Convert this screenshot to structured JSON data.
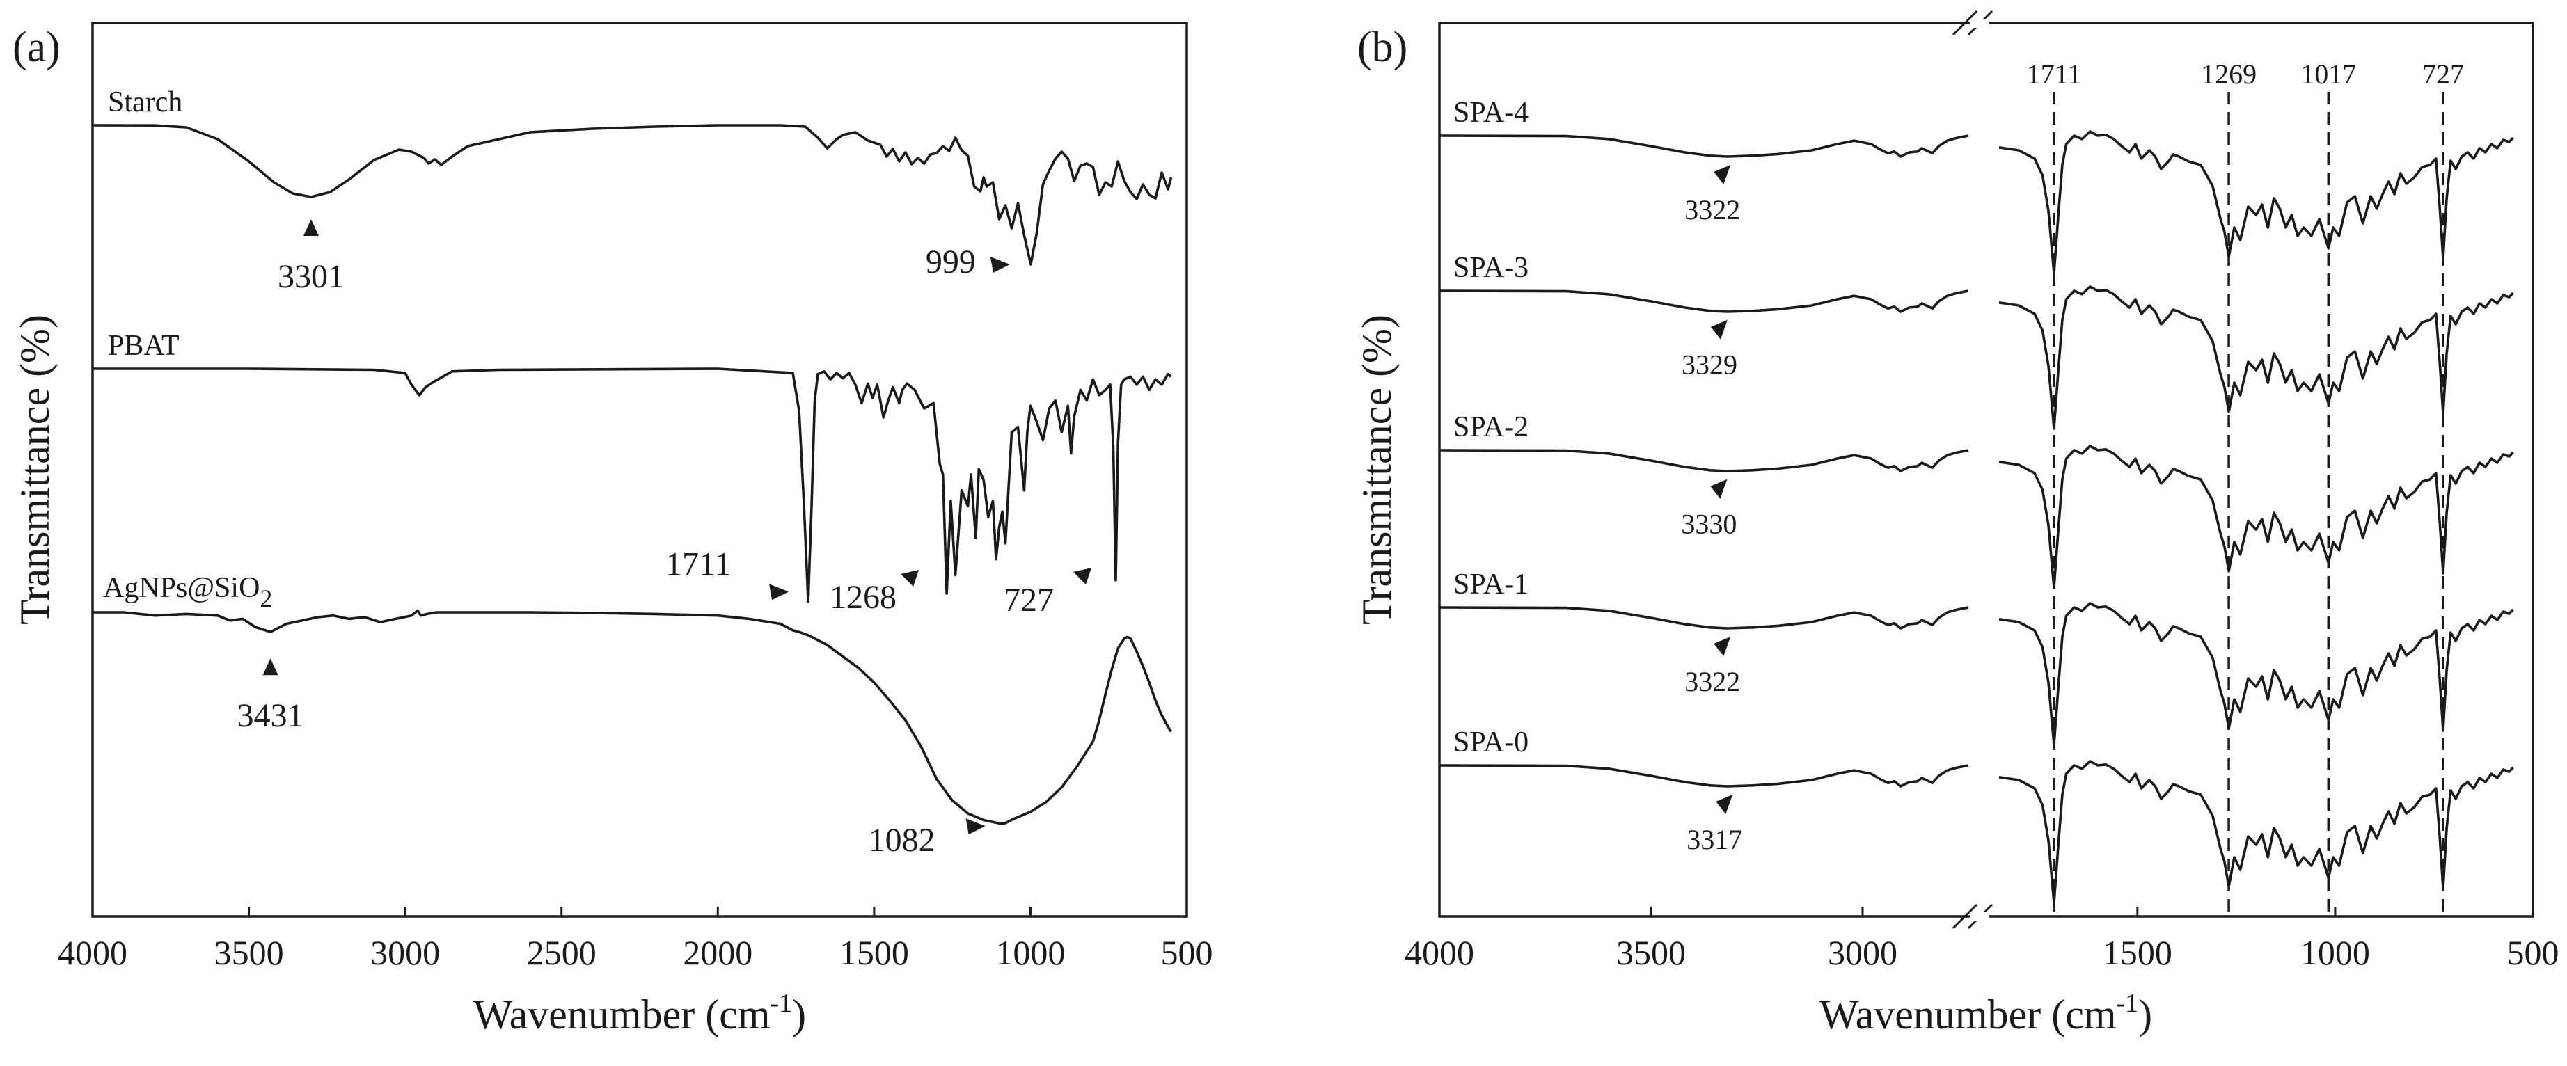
{
  "chart_data": [
    {
      "panel": "(a)",
      "type": "line",
      "xlabel": "Wavenumber (cm",
      "xlabel_sup": "-1",
      "xlabel_end": ")",
      "ylabel": "Transmittance (%)",
      "xlim": [
        4000,
        500
      ],
      "xticks": [
        "4000",
        "3500",
        "3000",
        "2500",
        "2000",
        "1500",
        "1000",
        "500"
      ],
      "series": [
        {
          "name": "Starch",
          "x": [
            4000,
            3800,
            3700,
            3600,
            3500,
            3420,
            3360,
            3301,
            3240,
            3180,
            3100,
            3020,
            2980,
            2940,
            2925,
            2905,
            2885,
            2850,
            2800,
            2600,
            2400,
            2200,
            2000,
            1800,
            1720,
            1680,
            1650,
            1620,
            1600,
            1560,
            1520,
            1480,
            1460,
            1440,
            1420,
            1400,
            1380,
            1360,
            1340,
            1320,
            1300,
            1280,
            1260,
            1240,
            1220,
            1200,
            1180,
            1160,
            1150,
            1140,
            1120,
            1100,
            1080,
            1060,
            1040,
            1020,
            999,
            980,
            960,
            940,
            920,
            900,
            880,
            860,
            840,
            820,
            800,
            780,
            760,
            740,
            720,
            700,
            680,
            660,
            640,
            620,
            600,
            580,
            560,
            550
          ],
          "y": [
            0,
            0.2,
            3,
            20,
            52,
            82,
            98,
            103,
            96,
            78,
            50,
            35,
            38,
            47,
            55,
            49,
            57,
            45,
            30,
            10,
            5,
            2,
            0,
            0,
            2,
            18,
            33,
            20,
            14,
            10,
            22,
            28,
            45,
            34,
            52,
            39,
            56,
            47,
            55,
            42,
            40,
            30,
            37,
            18,
            36,
            44,
            88,
            95,
            75,
            88,
            82,
            135,
            115,
            148,
            112,
            158,
            200,
            155,
            85,
            65,
            48,
            38,
            48,
            80,
            58,
            55,
            60,
            100,
            82,
            88,
            52,
            80,
            96,
            106,
            85,
            100,
            105,
            68,
            92,
            75
          ]
        },
        {
          "name": "PBAT",
          "x": [
            4000,
            3500,
            3100,
            3000,
            2980,
            2955,
            2935,
            2910,
            2880,
            2850,
            2700,
            2000,
            1760,
            1740,
            1725,
            1711,
            1700,
            1690,
            1680,
            1660,
            1640,
            1620,
            1600,
            1580,
            1560,
            1540,
            1520,
            1505,
            1490,
            1470,
            1455,
            1440,
            1420,
            1410,
            1395,
            1370,
            1340,
            1310,
            1290,
            1280,
            1268,
            1255,
            1240,
            1220,
            1200,
            1190,
            1175,
            1165,
            1150,
            1135,
            1120,
            1110,
            1100,
            1090,
            1080,
            1060,
            1040,
            1020,
            1010,
            1000,
            980,
            960,
            940,
            920,
            900,
            880,
            870,
            860,
            850,
            840,
            820,
            800,
            780,
            760,
            745,
            735,
            727,
            720,
            710,
            700,
            680,
            660,
            640,
            620,
            600,
            580,
            560,
            550
          ],
          "y": [
            0,
            0,
            2,
            8,
            30,
            50,
            35,
            25,
            15,
            5,
            2,
            0,
            8,
            80,
            250,
            440,
            260,
            60,
            10,
            5,
            20,
            8,
            18,
            8,
            30,
            65,
            28,
            55,
            30,
            92,
            60,
            35,
            65,
            40,
            28,
            40,
            75,
            65,
            180,
            200,
            425,
            250,
            390,
            230,
            260,
            200,
            320,
            190,
            210,
            280,
            250,
            360,
            300,
            270,
            330,
            120,
            110,
            230,
            120,
            70,
            100,
            135,
            75,
            60,
            120,
            70,
            160,
            90,
            65,
            40,
            60,
            20,
            50,
            40,
            30,
            150,
            400,
            140,
            30,
            20,
            15,
            30,
            15,
            40,
            20,
            30,
            10,
            15
          ]
        },
        {
          "name": "AgNPs@SiO",
          "name_sub": "2",
          "x": [
            4000,
            3900,
            3800,
            3700,
            3600,
            3560,
            3520,
            3480,
            3431,
            3380,
            3330,
            3280,
            3230,
            3180,
            3130,
            3080,
            3030,
            2980,
            2960,
            2950,
            2930,
            2900,
            2800,
            2600,
            2400,
            2200,
            2000,
            1900,
            1800,
            1760,
            1740,
            1711,
            1690,
            1650,
            1600,
            1550,
            1500,
            1450,
            1400,
            1350,
            1300,
            1250,
            1200,
            1150,
            1100,
            1082,
            1050,
            1000,
            950,
            900,
            850,
            800,
            780,
            760,
            740,
            720,
            700,
            690,
            680,
            660,
            640,
            620,
            600,
            580,
            560,
            550
          ],
          "y": [
            0,
            0,
            10,
            5,
            10,
            25,
            20,
            45,
            60,
            35,
            25,
            15,
            10,
            20,
            15,
            30,
            20,
            10,
            -5,
            10,
            5,
            0,
            0,
            0,
            2,
            5,
            10,
            20,
            35,
            55,
            60,
            70,
            80,
            100,
            135,
            170,
            215,
            270,
            330,
            410,
            510,
            575,
            615,
            635,
            645,
            645,
            630,
            610,
            580,
            535,
            470,
            395,
            330,
            250,
            175,
            110,
            80,
            75,
            80,
            120,
            165,
            215,
            270,
            315,
            350,
            365
          ]
        }
      ],
      "annotations": [
        {
          "text": "3301",
          "x": 3301,
          "series": "Starch"
        },
        {
          "text": "999",
          "x": 999,
          "series": "Starch"
        },
        {
          "text": "1711",
          "x": 1711,
          "series": "PBAT"
        },
        {
          "text": "1268",
          "x": 1268,
          "series": "PBAT"
        },
        {
          "text": "727",
          "x": 727,
          "series": "PBAT"
        },
        {
          "text": "3431",
          "x": 3431,
          "series": "AgNPs@SiO2"
        },
        {
          "text": "1082",
          "x": 1082,
          "series": "AgNPs@SiO2"
        }
      ]
    },
    {
      "panel": "(b)",
      "type": "line",
      "xlabel": "Wavenumber (cm",
      "xlabel_sup": "-1",
      "xlabel_end": ")",
      "ylabel": "Transmittance (%)",
      "xlim": [
        4000,
        500
      ],
      "axis_break": [
        2750,
        1850
      ],
      "xticks": [
        "4000",
        "3500",
        "3000",
        "1500",
        "1000",
        "500"
      ],
      "reference_lines": [
        "1711",
        "1269",
        "1017",
        "727"
      ],
      "series": [
        {
          "name": "SPA-4",
          "oh_peak": "3322"
        },
        {
          "name": "SPA-3",
          "oh_peak": "3329"
        },
        {
          "name": "SPA-2",
          "oh_peak": "3330"
        },
        {
          "name": "SPA-1",
          "oh_peak": "3322"
        },
        {
          "name": "SPA-0",
          "oh_peak": "3317"
        }
      ],
      "spectrum_shape": {
        "x": [
          4000,
          3700,
          3600,
          3500,
          3420,
          3360,
          3320,
          3260,
          3200,
          3120,
          3060,
          3020,
          2980,
          2960,
          2940,
          2925,
          2910,
          2890,
          2870,
          2860,
          2850,
          2835,
          2820,
          2800,
          2780,
          2760,
          2750,
          1850,
          1800,
          1760,
          1740,
          1725,
          1711,
          1700,
          1690,
          1680,
          1660,
          1640,
          1620,
          1600,
          1580,
          1560,
          1540,
          1520,
          1505,
          1490,
          1470,
          1455,
          1440,
          1420,
          1410,
          1395,
          1370,
          1340,
          1310,
          1290,
          1280,
          1269,
          1255,
          1240,
          1220,
          1200,
          1185,
          1170,
          1155,
          1140,
          1125,
          1110,
          1095,
          1080,
          1060,
          1040,
          1025,
          1017,
          1005,
          990,
          970,
          950,
          930,
          910,
          895,
          880,
          865,
          850,
          835,
          820,
          800,
          780,
          760,
          745,
          735,
          727,
          718,
          708,
          695,
          680,
          665,
          650,
          635,
          620,
          605,
          590,
          575,
          560,
          550
        ],
        "y": [
          0,
          1,
          8,
          25,
          40,
          48,
          50,
          48,
          44,
          35,
          20,
          12,
          20,
          32,
          42,
          38,
          50,
          40,
          38,
          30,
          35,
          42,
          25,
          12,
          6,
          2,
          0,
          28,
          35,
          55,
          95,
          180,
          330,
          190,
          70,
          20,
          0,
          8,
          -10,
          0,
          -2,
          8,
          25,
          40,
          20,
          55,
          35,
          50,
          80,
          60,
          45,
          50,
          62,
          70,
          120,
          200,
          230,
          290,
          220,
          250,
          170,
          190,
          165,
          220,
          150,
          175,
          220,
          190,
          240,
          220,
          240,
          200,
          245,
          270,
          220,
          240,
          160,
          145,
          210,
          145,
          175,
          140,
          110,
          140,
          90,
          115,
          100,
          75,
          70,
          55,
          180,
          295,
          150,
          60,
          80,
          50,
          40,
          55,
          30,
          40,
          20,
          30,
          10,
          15,
          5
        ]
      }
    }
  ]
}
